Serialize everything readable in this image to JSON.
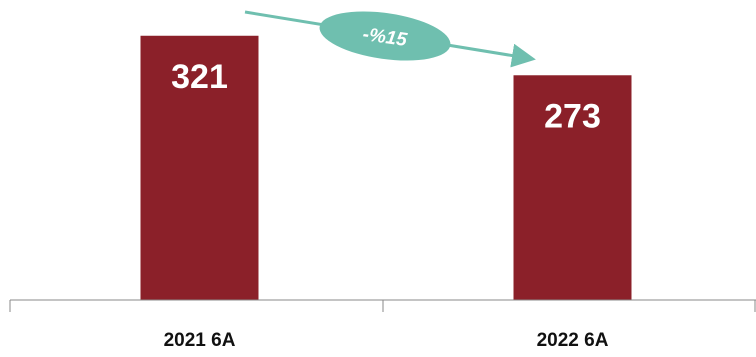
{
  "chart_data": {
    "type": "bar",
    "categories": [
      "2021 6A",
      "2022 6A"
    ],
    "values": [
      321,
      273
    ],
    "value_labels": [
      "321",
      "273"
    ],
    "ylim": [
      0,
      345
    ],
    "grid": false,
    "legend": "none",
    "annotation": {
      "text": "-%15",
      "kind": "change-arrow"
    }
  },
  "colors": {
    "bar": "#8B2029",
    "bar_label": "#ffffff",
    "arrow": "#6FBFAF",
    "axis": "#888888"
  }
}
